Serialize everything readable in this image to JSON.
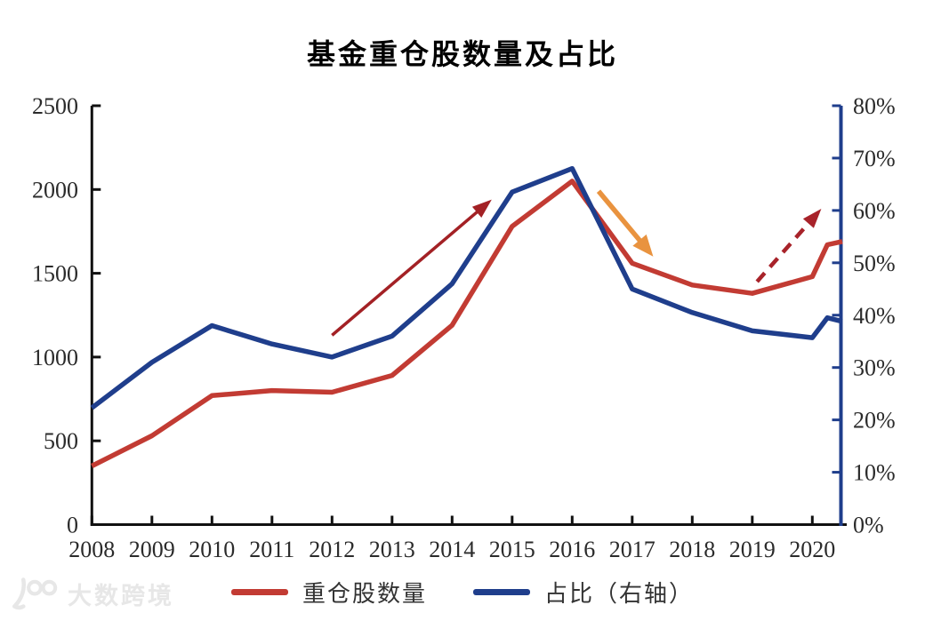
{
  "page": {
    "background": "#ffffff"
  },
  "header": {
    "title": "基金重仓股数量及占比"
  },
  "watermark": {
    "logo": "100-logo",
    "text": "大数跨境",
    "color": "#e7e7e7"
  },
  "legend": [
    {
      "label": "重仓股数量",
      "color": "#c23b33"
    },
    {
      "label": "占比（右轴）",
      "color": "#1f3e8c"
    }
  ],
  "chart_data": {
    "type": "line",
    "title": "基金重仓股数量及占比",
    "x": [
      2008,
      2009,
      2010,
      2011,
      2012,
      2013,
      2014,
      2015,
      2016,
      2017,
      2018,
      2019,
      2020,
      2020.25,
      2020.5
    ],
    "x_tick_labels": [
      "2008",
      "2009",
      "2010",
      "2011",
      "2012",
      "2013",
      "2014",
      "2015",
      "2016",
      "2017",
      "2018",
      "2019",
      "2020"
    ],
    "left_axis": {
      "min": 0,
      "max": 2500,
      "step": 500,
      "tick_labels": [
        "0",
        "500",
        "1000",
        "1500",
        "2000",
        "2500"
      ],
      "color": "#111111"
    },
    "right_axis": {
      "min": 0,
      "max": 80,
      "step": 10,
      "tick_labels": [
        "0%",
        "10%",
        "20%",
        "30%",
        "40%",
        "50%",
        "60%",
        "70%",
        "80%"
      ],
      "color": "#1f3e8c"
    },
    "series": [
      {
        "name": "重仓股数量",
        "axis": "left",
        "color": "#c23b33",
        "values": [
          350,
          530,
          770,
          800,
          790,
          890,
          1190,
          1780,
          2050,
          1560,
          1430,
          1380,
          1480,
          1670,
          1690
        ]
      },
      {
        "name": "占比（右轴）",
        "axis": "right",
        "color": "#1f3e8c",
        "unit": "%",
        "values": [
          22.3,
          31,
          38,
          34.5,
          32,
          36,
          46,
          63.5,
          68,
          45,
          40.5,
          37,
          35.7,
          39.5,
          38.8
        ]
      }
    ],
    "annotations": [
      {
        "name": "rise-arrow-2012-2015",
        "type": "arrow",
        "style": "solid",
        "color": "#a32125",
        "from": {
          "x": 2012.0,
          "y_left": 1130
        },
        "to": {
          "x": 2014.66,
          "y_left": 1940
        },
        "width": 3.5,
        "head_len": 22,
        "head_w": 16
      },
      {
        "name": "fall-arrow-2016-2017",
        "type": "arrow",
        "style": "solid",
        "color": "#e9933f",
        "from": {
          "x": 2016.44,
          "y_left": 1990
        },
        "to": {
          "x": 2017.35,
          "y_left": 1600
        },
        "width": 5.5,
        "head_len": 24,
        "head_w": 20
      },
      {
        "name": "rise-arrow-2019-2020-dashed",
        "type": "arrow",
        "style": "dashed",
        "color": "#a8232a",
        "from": {
          "x": 2019.08,
          "y_left": 1450
        },
        "to": {
          "x": 2020.15,
          "y_left": 1885
        },
        "width": 4.5,
        "head_len": 22,
        "head_w": 16,
        "dash": "13 9"
      }
    ],
    "grid": false,
    "legend_position": "bottom"
  }
}
